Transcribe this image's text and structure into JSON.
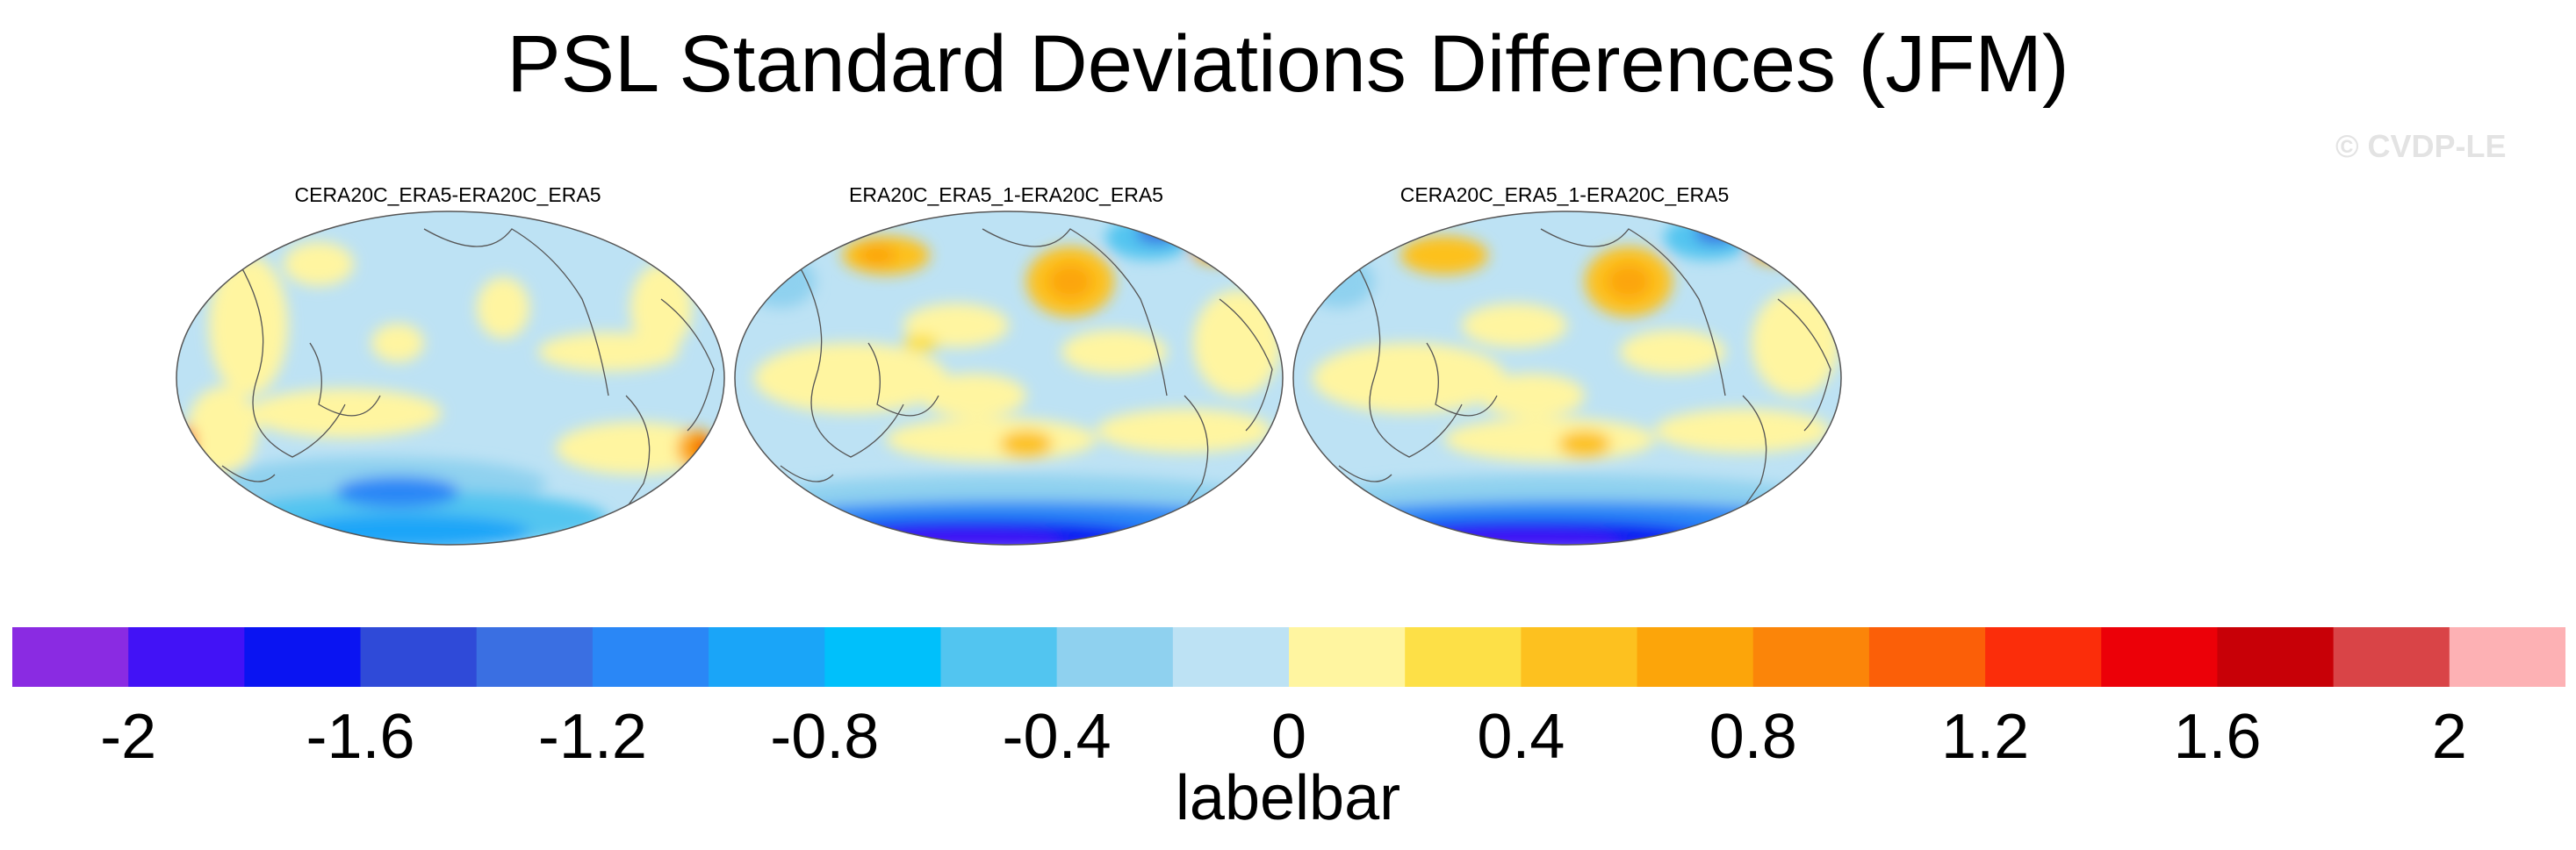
{
  "title": "PSL Standard Deviations Differences (JFM)",
  "watermark": "© CVDP-LE",
  "panels": [
    {
      "title": "CERA20C_ERA5-ERA20C_ERA5"
    },
    {
      "title": "ERA20C_ERA5_1-ERA20C_ERA5"
    },
    {
      "title": "CERA20C_ERA5_1-ERA20C_ERA5"
    }
  ],
  "labelbar": {
    "title": "labelbar",
    "tick_labels": [
      "-2",
      "-1.6",
      "-1.2",
      "-0.8",
      "-0.4",
      "0",
      "0.4",
      "0.8",
      "1.2",
      "1.6",
      "2"
    ],
    "colors": [
      "#8a2be2",
      "#4212f6",
      "#0a14f2",
      "#2f4ad8",
      "#3a6fe2",
      "#2a87f6",
      "#1aa5f8",
      "#00c0fb",
      "#52c5f0",
      "#8fd1ef",
      "#bde2f4",
      "#fff5a0",
      "#fde047",
      "#fdc11f",
      "#fca50a",
      "#fb8509",
      "#fb5f08",
      "#fb2d0a",
      "#ec0008",
      "#c80007",
      "#d94447",
      "#fdb1b4"
    ]
  }
}
